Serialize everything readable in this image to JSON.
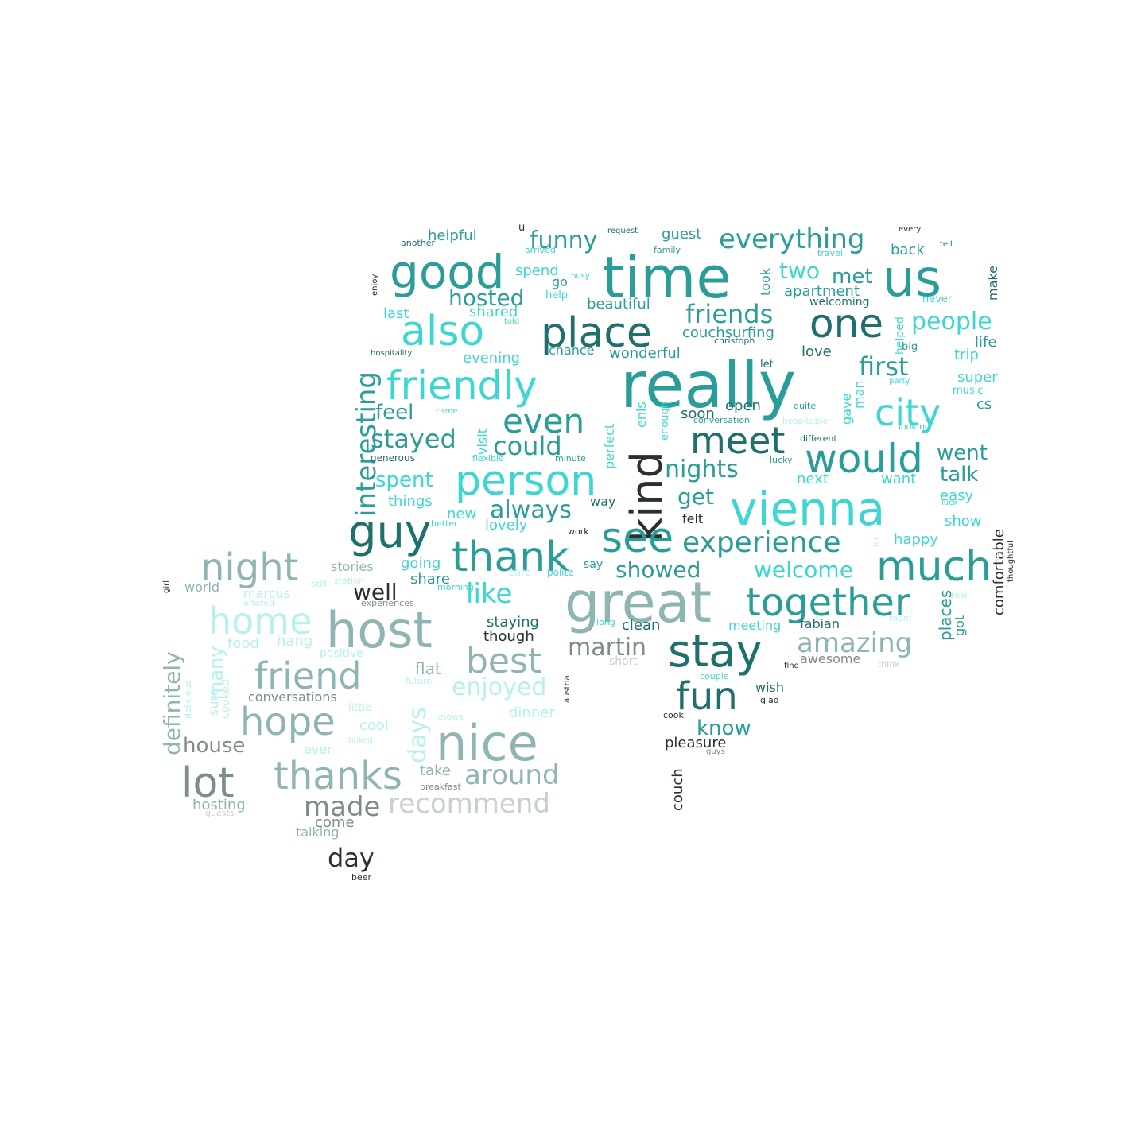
{
  "palette": {
    "background": "#ffffff",
    "cyan": "#3ed6d0",
    "teal": "#2a9d98",
    "dark_teal": "#1f6f6c",
    "light_cyan": "#b8f0ee",
    "grey_teal": "#8fb5b3",
    "grey": "#7f8c8b",
    "light_grey": "#c8cfcf",
    "dark": "#2a2f2f"
  },
  "words": [
    {
      "text": "really",
      "color": "teal"
    },
    {
      "text": "time",
      "color": "teal"
    },
    {
      "text": "great",
      "color": "grey_teal"
    },
    {
      "text": "host",
      "color": "grey_teal"
    },
    {
      "text": "nice",
      "color": "grey_teal"
    },
    {
      "text": "vienna",
      "color": "cyan"
    },
    {
      "text": "us",
      "color": "teal"
    },
    {
      "text": "good",
      "color": "teal"
    },
    {
      "text": "place",
      "color": "dark_teal"
    },
    {
      "text": "stay",
      "color": "dark_teal"
    },
    {
      "text": "thank",
      "color": "teal"
    },
    {
      "text": "together",
      "color": "teal"
    },
    {
      "text": "person",
      "color": "cyan"
    },
    {
      "text": "friendly",
      "color": "cyan"
    },
    {
      "text": "kind",
      "color": "dark"
    },
    {
      "text": "guy",
      "color": "dark_teal"
    },
    {
      "text": "see",
      "color": "teal"
    },
    {
      "text": "much",
      "color": "teal"
    },
    {
      "text": "also",
      "color": "cyan"
    },
    {
      "text": "one",
      "color": "dark_teal"
    },
    {
      "text": "meet",
      "color": "dark_teal"
    },
    {
      "text": "would",
      "color": "teal"
    },
    {
      "text": "city",
      "color": "cyan"
    },
    {
      "text": "night",
      "color": "grey_teal"
    },
    {
      "text": "home",
      "color": "light_cyan"
    },
    {
      "text": "friend",
      "color": "grey_teal"
    },
    {
      "text": "hope",
      "color": "grey_teal"
    },
    {
      "text": "lot",
      "color": "grey"
    },
    {
      "text": "thanks",
      "color": "grey_teal"
    },
    {
      "text": "fun",
      "color": "dark_teal"
    },
    {
      "text": "best",
      "color": "grey_teal"
    },
    {
      "text": "even",
      "color": "teal"
    },
    {
      "text": "interesting",
      "color": "teal"
    },
    {
      "text": "experience",
      "color": "teal"
    },
    {
      "text": "everything",
      "color": "teal"
    },
    {
      "text": "amazing",
      "color": "grey_teal"
    },
    {
      "text": "recommend",
      "color": "light_grey"
    },
    {
      "text": "around",
      "color": "grey_teal"
    },
    {
      "text": "made",
      "color": "grey"
    },
    {
      "text": "day",
      "color": "dark"
    },
    {
      "text": "friends",
      "color": "teal"
    },
    {
      "text": "could",
      "color": "teal"
    },
    {
      "text": "stayed",
      "color": "teal"
    },
    {
      "text": "like",
      "color": "cyan"
    },
    {
      "text": "always",
      "color": "teal"
    },
    {
      "text": "welcome",
      "color": "cyan"
    },
    {
      "text": "first",
      "color": "teal"
    },
    {
      "text": "people",
      "color": "cyan"
    },
    {
      "text": "hosted",
      "color": "teal"
    },
    {
      "text": "funny",
      "color": "teal"
    },
    {
      "text": "nights",
      "color": "teal"
    },
    {
      "text": "definitely",
      "color": "grey_teal"
    },
    {
      "text": "days",
      "color": "light_cyan"
    },
    {
      "text": "enjoyed",
      "color": "light_cyan"
    },
    {
      "text": "well",
      "color": "dark"
    },
    {
      "text": "house",
      "color": "grey"
    },
    {
      "text": "martin",
      "color": "grey"
    },
    {
      "text": "showed",
      "color": "teal"
    },
    {
      "text": "know",
      "color": "teal"
    },
    {
      "text": "went",
      "color": "teal"
    },
    {
      "text": "talk",
      "color": "teal"
    },
    {
      "text": "spent",
      "color": "cyan"
    },
    {
      "text": "get",
      "color": "teal"
    },
    {
      "text": "feel",
      "color": "teal"
    },
    {
      "text": "two",
      "color": "cyan"
    },
    {
      "text": "met",
      "color": "teal"
    },
    {
      "text": "many",
      "color": "light_cyan"
    },
    {
      "text": "comfortable",
      "color": "dark"
    },
    {
      "text": "places",
      "color": "teal"
    },
    {
      "text": "pleasure",
      "color": "dark"
    },
    {
      "text": "couch",
      "color": "dark"
    },
    {
      "text": "flat",
      "color": "grey_teal"
    },
    {
      "text": "take",
      "color": "grey_teal"
    },
    {
      "text": "hosting",
      "color": "grey_teal"
    },
    {
      "text": "come",
      "color": "grey"
    },
    {
      "text": "talking",
      "color": "grey_teal"
    },
    {
      "text": "beer",
      "color": "dark"
    },
    {
      "text": "helpful",
      "color": "teal"
    },
    {
      "text": "guest",
      "color": "teal"
    },
    {
      "text": "back",
      "color": "teal"
    },
    {
      "text": "apartment",
      "color": "teal"
    },
    {
      "text": "couchsurfing",
      "color": "teal"
    },
    {
      "text": "wonderful",
      "color": "teal"
    },
    {
      "text": "beautiful",
      "color": "teal"
    },
    {
      "text": "spend",
      "color": "cyan"
    },
    {
      "text": "shared",
      "color": "cyan"
    },
    {
      "text": "last",
      "color": "cyan"
    },
    {
      "text": "go",
      "color": "teal"
    },
    {
      "text": "took",
      "color": "teal"
    },
    {
      "text": "make",
      "color": "dark_teal"
    },
    {
      "text": "life",
      "color": "teal"
    },
    {
      "text": "trip",
      "color": "cyan"
    },
    {
      "text": "love",
      "color": "dark_teal"
    },
    {
      "text": "evening",
      "color": "cyan"
    },
    {
      "text": "chance",
      "color": "teal"
    },
    {
      "text": "visit",
      "color": "cyan"
    },
    {
      "text": "perfect",
      "color": "cyan"
    },
    {
      "text": "soon",
      "color": "dark_teal"
    },
    {
      "text": "open",
      "color": "dark_teal"
    },
    {
      "text": "gave",
      "color": "cyan"
    },
    {
      "text": "man",
      "color": "cyan"
    },
    {
      "text": "super",
      "color": "cyan"
    },
    {
      "text": "cs",
      "color": "teal"
    },
    {
      "text": "easy",
      "color": "cyan"
    },
    {
      "text": "show",
      "color": "cyan"
    },
    {
      "text": "happy",
      "color": "cyan"
    },
    {
      "text": "next",
      "color": "cyan"
    },
    {
      "text": "want",
      "color": "cyan"
    },
    {
      "text": "way",
      "color": "dark_teal"
    },
    {
      "text": "things",
      "color": "cyan"
    },
    {
      "text": "new",
      "color": "cyan"
    },
    {
      "text": "lovely",
      "color": "cyan"
    },
    {
      "text": "felt",
      "color": "dark"
    },
    {
      "text": "going",
      "color": "cyan"
    },
    {
      "text": "share",
      "color": "teal"
    },
    {
      "text": "stories",
      "color": "grey_teal"
    },
    {
      "text": "world",
      "color": "grey_teal"
    },
    {
      "text": "marcus",
      "color": "light_cyan"
    },
    {
      "text": "food",
      "color": "light_cyan"
    },
    {
      "text": "hang",
      "color": "light_cyan"
    },
    {
      "text": "sure",
      "color": "light_cyan"
    },
    {
      "text": "cooked",
      "color": "light_cyan"
    },
    {
      "text": "conversations",
      "color": "grey"
    },
    {
      "text": "dinner",
      "color": "light_cyan"
    },
    {
      "text": "cool",
      "color": "light_cyan"
    },
    {
      "text": "ever",
      "color": "light_cyan"
    },
    {
      "text": "staying",
      "color": "dark_teal"
    },
    {
      "text": "though",
      "color": "dark"
    },
    {
      "text": "clean",
      "color": "dark_teal"
    },
    {
      "text": "meeting",
      "color": "cyan"
    },
    {
      "text": "fabian",
      "color": "dark_teal"
    },
    {
      "text": "awesome",
      "color": "grey"
    },
    {
      "text": "short",
      "color": "light_grey"
    },
    {
      "text": "wish",
      "color": "dark_teal"
    },
    {
      "text": "got",
      "color": "teal"
    },
    {
      "text": "enjoy",
      "color": "dark"
    },
    {
      "text": "another",
      "color": "dark_teal"
    },
    {
      "text": "arrived",
      "color": "cyan"
    },
    {
      "text": "u",
      "color": "dark"
    },
    {
      "text": "request",
      "color": "dark_teal"
    },
    {
      "text": "family",
      "color": "teal"
    },
    {
      "text": "busy",
      "color": "cyan"
    },
    {
      "text": "help",
      "color": "cyan"
    },
    {
      "text": "told",
      "color": "cyan"
    },
    {
      "text": "hospitality",
      "color": "dark_teal"
    },
    {
      "text": "christoph",
      "color": "dark_teal"
    },
    {
      "text": "welcoming",
      "color": "dark_teal"
    },
    {
      "text": "helped",
      "color": "cyan"
    },
    {
      "text": "big",
      "color": "teal"
    },
    {
      "text": "never",
      "color": "cyan"
    },
    {
      "text": "travel",
      "color": "cyan"
    },
    {
      "text": "every",
      "color": "dark"
    },
    {
      "text": "tell",
      "color": "dark_teal"
    },
    {
      "text": "let",
      "color": "dark_teal"
    },
    {
      "text": "enis",
      "color": "cyan"
    },
    {
      "text": "enough",
      "color": "cyan"
    },
    {
      "text": "conversation",
      "color": "teal"
    },
    {
      "text": "quite",
      "color": "teal"
    },
    {
      "text": "party",
      "color": "cyan"
    },
    {
      "text": "music",
      "color": "cyan"
    },
    {
      "text": "looking",
      "color": "cyan"
    },
    {
      "text": "different",
      "color": "dark_teal"
    },
    {
      "text": "lucky",
      "color": "teal"
    },
    {
      "text": "luck",
      "color": "cyan"
    },
    {
      "text": "came",
      "color": "cyan"
    },
    {
      "text": "generous",
      "color": "dark_teal"
    },
    {
      "text": "flexible",
      "color": "cyan"
    },
    {
      "text": "minute",
      "color": "teal"
    },
    {
      "text": "better",
      "color": "cyan"
    },
    {
      "text": "work",
      "color": "dark"
    },
    {
      "text": "care",
      "color": "light_cyan"
    },
    {
      "text": "polite",
      "color": "cyan"
    },
    {
      "text": "say",
      "color": "teal"
    },
    {
      "text": "long",
      "color": "cyan"
    },
    {
      "text": "station",
      "color": "light_cyan"
    },
    {
      "text": "still",
      "color": "light_cyan"
    },
    {
      "text": "morning",
      "color": "cyan"
    },
    {
      "text": "experiences",
      "color": "grey"
    },
    {
      "text": "offered",
      "color": "light_cyan"
    },
    {
      "text": "positive",
      "color": "light_cyan"
    },
    {
      "text": "girl",
      "color": "dark"
    },
    {
      "text": "delicious",
      "color": "light_cyan"
    },
    {
      "text": "future",
      "color": "light_cyan"
    },
    {
      "text": "little",
      "color": "light_cyan"
    },
    {
      "text": "knows",
      "color": "light_cyan"
    },
    {
      "text": "talked",
      "color": "light_cyan"
    },
    {
      "text": "breakfast",
      "color": "grey"
    },
    {
      "text": "guests",
      "color": "light_grey"
    },
    {
      "text": "austria",
      "color": "dark"
    },
    {
      "text": "couple",
      "color": "cyan"
    },
    {
      "text": "glad",
      "color": "dark"
    },
    {
      "text": "find",
      "color": "dark"
    },
    {
      "text": "cook",
      "color": "dark"
    },
    {
      "text": "guys",
      "color": "grey"
    },
    {
      "text": "bit",
      "color": "light_cyan"
    },
    {
      "text": "thoughtful",
      "color": "dark"
    },
    {
      "text": "real",
      "color": "light_cyan"
    },
    {
      "text": "room",
      "color": "light_cyan"
    },
    {
      "text": "think",
      "color": "light_grey"
    },
    {
      "text": "hospitable",
      "color": "light_cyan"
    }
  ]
}
